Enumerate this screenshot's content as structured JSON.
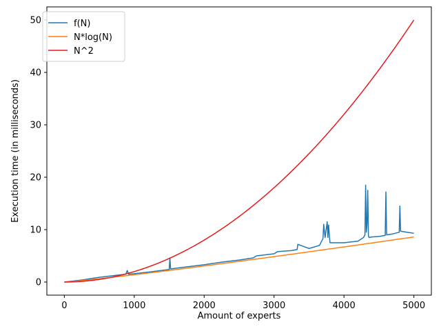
{
  "chart_data": {
    "type": "line",
    "xlabel": "Amount of experts",
    "ylabel": "Execution time (in milliseconds)",
    "xlim": [
      -250,
      5250
    ],
    "ylim": [
      -2.5,
      52.5
    ],
    "x_ticks": [
      0,
      1000,
      2000,
      3000,
      4000,
      5000
    ],
    "x_tick_labels": [
      "0",
      "1000",
      "2000",
      "3000",
      "4000",
      "5000"
    ],
    "y_ticks": [
      0,
      10,
      20,
      30,
      40,
      50
    ],
    "y_tick_labels": [
      "0",
      "10",
      "20",
      "30",
      "40",
      "50"
    ],
    "grid": false,
    "legend_position": "upper-left",
    "series": [
      {
        "name": "f(N)",
        "color": "#1f77b4",
        "x": [
          0,
          250,
          500,
          750,
          880,
          900,
          920,
          1000,
          1200,
          1500,
          1510,
          1520,
          1750,
          2000,
          2250,
          2500,
          2700,
          2750,
          3000,
          3050,
          3250,
          3330,
          3340,
          3500,
          3650,
          3700,
          3710,
          3730,
          3760,
          3770,
          3780,
          3800,
          4000,
          4200,
          4280,
          4300,
          4310,
          4320,
          4330,
          4340,
          4350,
          4360,
          4400,
          4500,
          4590,
          4600,
          4610,
          4700,
          4790,
          4800,
          4810,
          4900,
          5000
        ],
        "y": [
          0,
          0.4,
          0.9,
          1.3,
          1.5,
          2.2,
          1.5,
          1.6,
          1.9,
          2.4,
          4.6,
          2.5,
          2.9,
          3.3,
          3.8,
          4.2,
          4.6,
          5.0,
          5.4,
          5.8,
          6.0,
          6.2,
          7.2,
          6.4,
          7.0,
          8.3,
          11.0,
          8.5,
          11.5,
          8.5,
          10.9,
          7.5,
          7.5,
          7.8,
          8.5,
          9.0,
          18.5,
          9.5,
          11.0,
          17.5,
          8.8,
          8.5,
          8.6,
          8.7,
          8.9,
          17.2,
          9.0,
          9.2,
          9.5,
          14.5,
          9.7,
          9.5,
          9.3
        ]
      },
      {
        "name": "N*log(N)",
        "color": "#ff7f0e",
        "formula": "N*log10(N)/2150",
        "x_range": [
          0,
          5000
        ]
      },
      {
        "name": "N^2",
        "color": "#e41a1c",
        "formula": "N^2/500000",
        "x_range": [
          0,
          5000
        ]
      }
    ]
  }
}
